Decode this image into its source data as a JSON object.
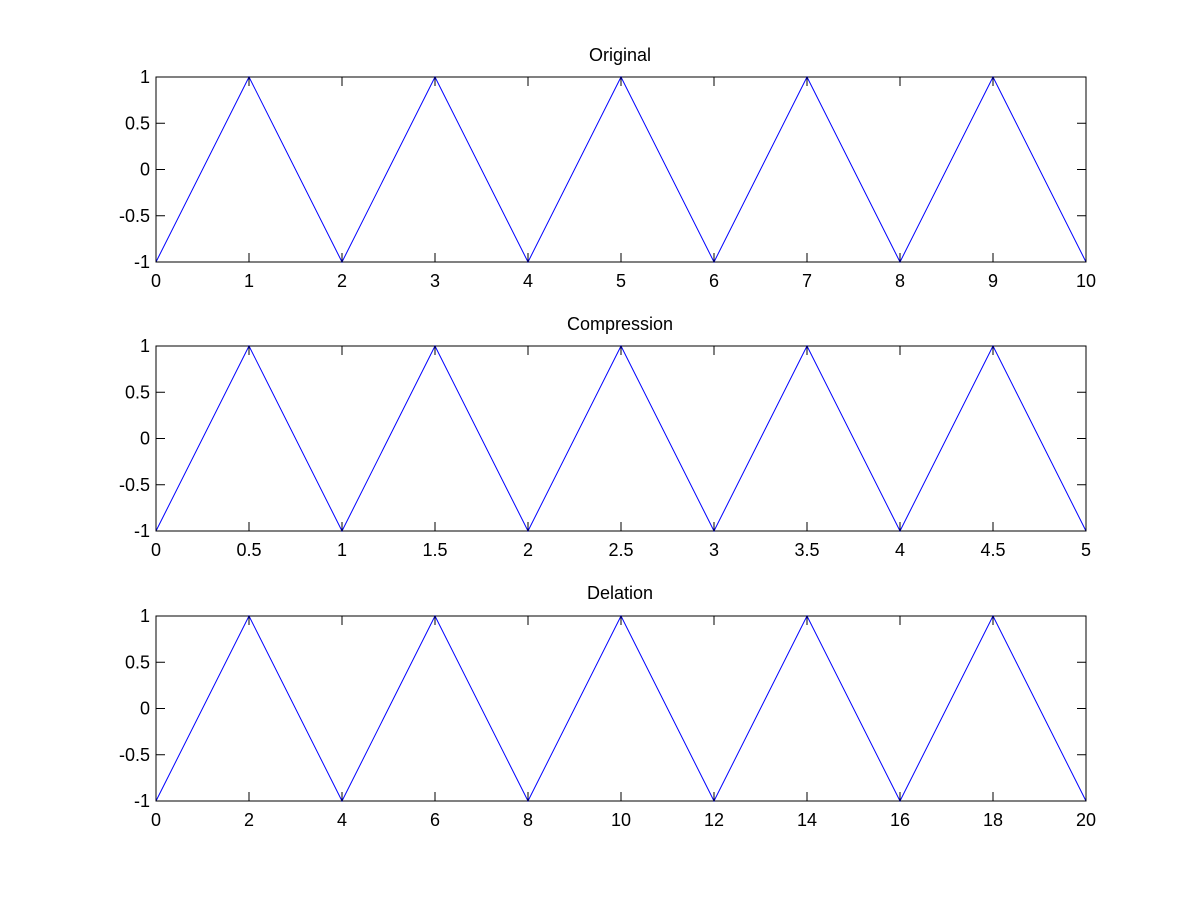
{
  "figure": {
    "background": "#ffffff",
    "line_color": "#0000ff"
  },
  "chart_data": [
    {
      "type": "line",
      "title": "Original",
      "xlabel": "",
      "ylabel": "",
      "xlim": [
        0,
        10
      ],
      "ylim": [
        -1,
        1
      ],
      "xticks": [
        0,
        1,
        2,
        3,
        4,
        5,
        6,
        7,
        8,
        9,
        10
      ],
      "xtick_labels": [
        "0",
        "1",
        "2",
        "3",
        "4",
        "5",
        "6",
        "7",
        "8",
        "9",
        "10"
      ],
      "yticks": [
        -1,
        -0.5,
        0,
        0.5,
        1
      ],
      "ytick_labels": [
        "-1",
        "-0.5",
        "0",
        "0.5",
        "1"
      ],
      "grid": false,
      "series": [
        {
          "color": "#0000ff",
          "x": [
            0,
            1,
            2,
            3,
            4,
            5,
            6,
            7,
            8,
            9,
            10
          ],
          "y": [
            -1,
            1,
            -1,
            1,
            -1,
            1,
            -1,
            1,
            -1,
            1,
            -1
          ]
        }
      ]
    },
    {
      "type": "line",
      "title": "Compression",
      "xlabel": "",
      "ylabel": "",
      "xlim": [
        0,
        5
      ],
      "ylim": [
        -1,
        1
      ],
      "xticks": [
        0,
        0.5,
        1,
        1.5,
        2,
        2.5,
        3,
        3.5,
        4,
        4.5,
        5
      ],
      "xtick_labels": [
        "0",
        "0.5",
        "1",
        "1.5",
        "2",
        "2.5",
        "3",
        "3.5",
        "4",
        "4.5",
        "5"
      ],
      "yticks": [
        -1,
        -0.5,
        0,
        0.5,
        1
      ],
      "ytick_labels": [
        "-1",
        "-0.5",
        "0",
        "0.5",
        "1"
      ],
      "grid": false,
      "series": [
        {
          "color": "#0000ff",
          "x": [
            0,
            0.5,
            1,
            1.5,
            2,
            2.5,
            3,
            3.5,
            4,
            4.5,
            5
          ],
          "y": [
            -1,
            1,
            -1,
            1,
            -1,
            1,
            -1,
            1,
            -1,
            1,
            -1
          ]
        }
      ]
    },
    {
      "type": "line",
      "title": "Delation",
      "xlabel": "",
      "ylabel": "",
      "xlim": [
        0,
        20
      ],
      "ylim": [
        -1,
        1
      ],
      "xticks": [
        0,
        2,
        4,
        6,
        8,
        10,
        12,
        14,
        16,
        18,
        20
      ],
      "xtick_labels": [
        "0",
        "2",
        "4",
        "6",
        "8",
        "10",
        "12",
        "14",
        "16",
        "18",
        "20"
      ],
      "yticks": [
        -1,
        -0.5,
        0,
        0.5,
        1
      ],
      "ytick_labels": [
        "-1",
        "-0.5",
        "0",
        "0.5",
        "1"
      ],
      "grid": false,
      "series": [
        {
          "color": "#0000ff",
          "x": [
            0,
            2,
            4,
            6,
            8,
            10,
            12,
            14,
            16,
            18,
            20
          ],
          "y": [
            -1,
            1,
            -1,
            1,
            -1,
            1,
            -1,
            1,
            -1,
            1,
            -1
          ]
        }
      ]
    }
  ]
}
